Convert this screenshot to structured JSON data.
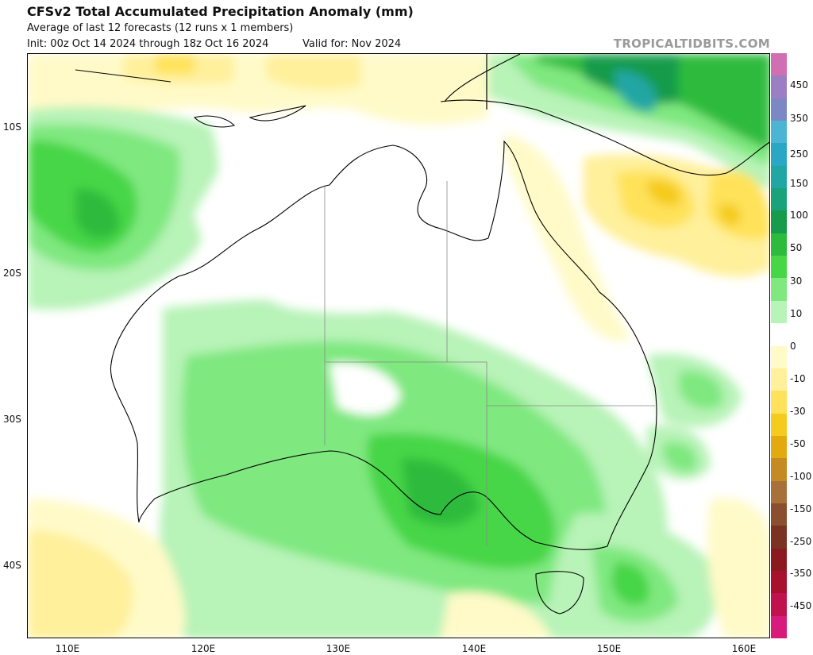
{
  "header": {
    "title": "CFSv2 Total Accumulated Precipitation Anomaly (mm)",
    "subtitle": "Average of last 12 forecasts (12 runs x 1 members)",
    "init": "Init: 00z Oct 14 2024 through 18z Oct 16 2024",
    "valid": "Valid for: Nov 2024",
    "brand": "TROPICALTIDBITS.COM"
  },
  "axes": {
    "lat_labels": [
      "10S",
      "20S",
      "30S",
      "40S"
    ],
    "lon_labels": [
      "110E",
      "120E",
      "130E",
      "140E",
      "150E",
      "160E"
    ]
  },
  "colorbar": {
    "labels": [
      "450",
      "350",
      "250",
      "150",
      "100",
      "50",
      "30",
      "10",
      "0",
      "-10",
      "-30",
      "-50",
      "-100",
      "-150",
      "-250",
      "-350",
      "-450"
    ],
    "colors": [
      "#d06fb2",
      "#9b7fc2",
      "#7b88c4",
      "#4cb5d4",
      "#2aa7c4",
      "#22a6a4",
      "#1aa37a",
      "#179b4c",
      "#2dbb3e",
      "#46d646",
      "#7fe87f",
      "#b8f3b8",
      "#ffffff",
      "#fffac8",
      "#fff09b",
      "#ffe25a",
      "#f5cb1e",
      "#e3aa10",
      "#c48a23",
      "#a8713a",
      "#8a4f2f",
      "#7a3322",
      "#8a1a20",
      "#a8102e",
      "#c0124c",
      "#d81a7a"
    ]
  },
  "legend_note": ""
}
